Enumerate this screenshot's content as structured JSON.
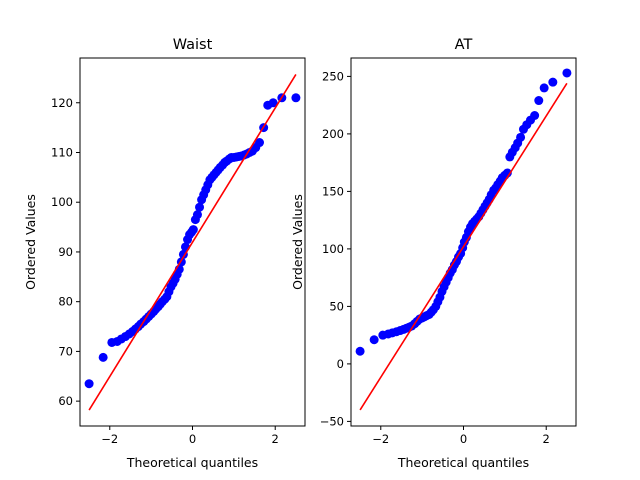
{
  "chart_data": [
    {
      "type": "scatter",
      "title": "Waist",
      "xlabel": "Theoretical quantiles",
      "ylabel": "Ordered Values",
      "xlim": [
        -2.72,
        2.72
      ],
      "ylim": [
        55,
        129
      ],
      "xticks": [
        -2,
        0,
        2
      ],
      "yticks": [
        60,
        70,
        80,
        90,
        100,
        110,
        120
      ],
      "grid": false,
      "colors": {
        "points": "#0000ff",
        "fit_line": "#ff0000"
      },
      "fit_line": {
        "x": [
          -2.5,
          2.5
        ],
        "y": [
          58.2,
          125.7
        ]
      },
      "points": {
        "x": [
          -2.5,
          -2.16,
          -1.95,
          -1.82,
          -1.72,
          -1.62,
          -1.53,
          -1.45,
          -1.38,
          -1.31,
          -1.25,
          -1.18,
          -1.12,
          -1.06,
          -1.0,
          -0.94,
          -0.89,
          -0.83,
          -0.78,
          -0.73,
          -0.67,
          -0.62,
          -0.57,
          -0.52,
          -0.47,
          -0.42,
          -0.37,
          -0.32,
          -0.27,
          -0.22,
          -0.17,
          -0.12,
          -0.07,
          -0.02,
          0.02,
          0.07,
          0.12,
          0.17,
          0.22,
          0.27,
          0.32,
          0.37,
          0.42,
          0.47,
          0.52,
          0.57,
          0.62,
          0.67,
          0.73,
          0.78,
          0.83,
          0.89,
          0.94,
          1.0,
          1.06,
          1.12,
          1.18,
          1.25,
          1.31,
          1.38,
          1.45,
          1.53,
          1.62,
          1.72,
          1.82,
          1.95,
          2.16,
          2.5
        ],
        "y": [
          63.5,
          68.8,
          71.8,
          72.0,
          72.5,
          73.0,
          73.5,
          74.0,
          74.5,
          75.0,
          75.5,
          76.0,
          76.5,
          77.0,
          77.5,
          78.0,
          78.5,
          79.0,
          79.5,
          80.0,
          80.5,
          81.0,
          82.0,
          83.0,
          83.7,
          84.5,
          85.5,
          86.5,
          88.0,
          89.5,
          91.0,
          92.5,
          93.5,
          94.0,
          94.5,
          96.5,
          97.5,
          99.0,
          100.5,
          101.5,
          102.5,
          103.5,
          104.5,
          105.0,
          105.5,
          106.0,
          106.5,
          107.0,
          107.5,
          108.0,
          108.3,
          108.7,
          109.0,
          109.0,
          109.1,
          109.2,
          109.3,
          109.5,
          109.7,
          110.0,
          110.3,
          111.0,
          112.0,
          115.0,
          119.5,
          120.0,
          121.0,
          121.0
        ]
      }
    },
    {
      "type": "scatter",
      "title": "AT",
      "xlabel": "Theoretical quantiles",
      "ylabel": "Ordered Values",
      "xlim": [
        -2.72,
        2.72
      ],
      "ylim": [
        -54,
        266
      ],
      "xticks": [
        -2,
        0,
        2
      ],
      "yticks": [
        -50,
        0,
        50,
        100,
        150,
        200,
        250
      ],
      "grid": false,
      "colors": {
        "points": "#0000ff",
        "fit_line": "#ff0000"
      },
      "fit_line": {
        "x": [
          -2.5,
          2.5
        ],
        "y": [
          -40,
          244
        ]
      },
      "points": {
        "x": [
          -2.5,
          -2.16,
          -1.95,
          -1.82,
          -1.72,
          -1.62,
          -1.53,
          -1.45,
          -1.38,
          -1.31,
          -1.25,
          -1.18,
          -1.12,
          -1.06,
          -1.0,
          -0.94,
          -0.89,
          -0.83,
          -0.78,
          -0.73,
          -0.67,
          -0.62,
          -0.57,
          -0.52,
          -0.47,
          -0.42,
          -0.37,
          -0.32,
          -0.27,
          -0.22,
          -0.17,
          -0.12,
          -0.07,
          -0.02,
          0.02,
          0.07,
          0.12,
          0.17,
          0.22,
          0.27,
          0.32,
          0.37,
          0.42,
          0.47,
          0.52,
          0.57,
          0.62,
          0.67,
          0.73,
          0.78,
          0.83,
          0.89,
          0.94,
          1.0,
          1.06,
          1.12,
          1.18,
          1.25,
          1.31,
          1.38,
          1.45,
          1.53,
          1.62,
          1.72,
          1.82,
          1.95,
          2.16,
          2.5
        ],
        "y": [
          11,
          21,
          25,
          26,
          27,
          28,
          29,
          30,
          31,
          32,
          33,
          35,
          37,
          39,
          40,
          41,
          42,
          43,
          45,
          47,
          50,
          54,
          58,
          63,
          67,
          71,
          75,
          79,
          82,
          86,
          89,
          93,
          96,
          101,
          106,
          110,
          115,
          119,
          122,
          124,
          126,
          128,
          131,
          134,
          137,
          140,
          143,
          147,
          151,
          153,
          156,
          159,
          162,
          164,
          166,
          180,
          184,
          188,
          192,
          197,
          204,
          208,
          212,
          216,
          229,
          240,
          245,
          253
        ]
      }
    }
  ]
}
